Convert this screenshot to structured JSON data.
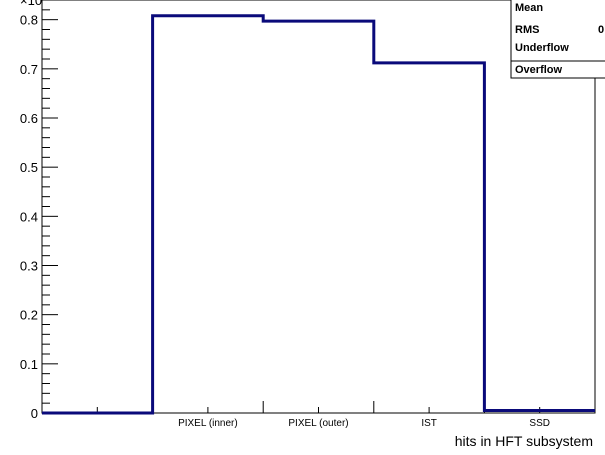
{
  "chart_data": {
    "type": "histogram",
    "title": "",
    "xlabel": "hits in HFT subsystem",
    "ylabel": "",
    "y_exponent_label": "×10",
    "ylim": [
      0,
      0.84
    ],
    "y_ticks": [
      "0",
      "0.1",
      "0.2",
      "0.3",
      "0.4",
      "0.5",
      "0.6",
      "0.7",
      "0.8"
    ],
    "categories": [
      "",
      "PIXEL (inner)",
      "PIXEL (outer)",
      "IST",
      "SSD"
    ],
    "values": [
      0.0,
      0.808,
      0.797,
      0.712,
      0.005
    ],
    "line_color": "#0a0a7a",
    "stats_box": {
      "labels": [
        "Mean",
        "RMS",
        "Underflow",
        "Overflow"
      ],
      "values": [
        "",
        "0",
        "",
        ""
      ]
    }
  }
}
